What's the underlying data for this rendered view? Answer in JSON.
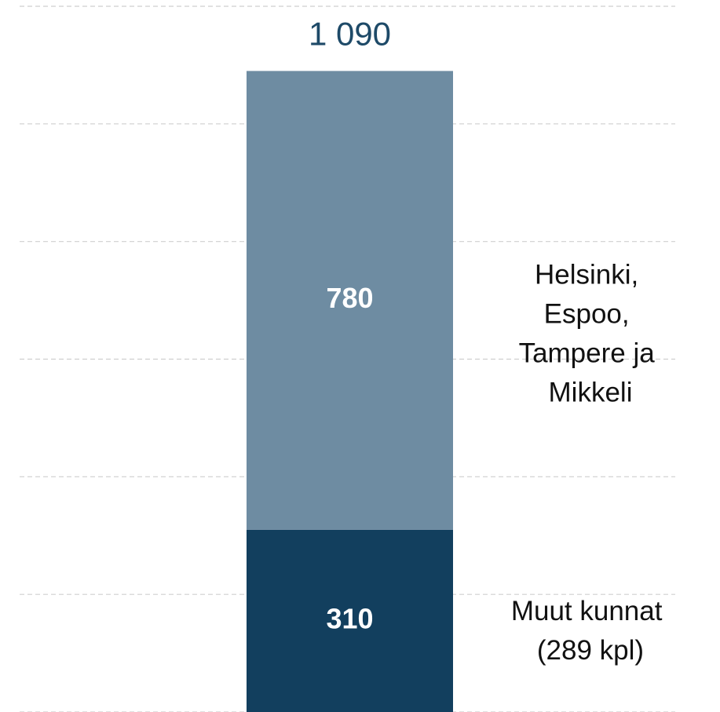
{
  "chart_data": {
    "type": "stacked_bar",
    "total_label": "1 090",
    "series": [
      {
        "name": "Muut kunnat (289 kpl)",
        "color": "#123f5e",
        "values": [
          310
        ]
      },
      {
        "name": "Helsinki, Espoo, Tampere ja Mikkeli",
        "color": "#6e8ca2",
        "values": [
          780
        ]
      }
    ],
    "ylim": [
      0,
      1200
    ],
    "yticks": [
      0,
      200,
      400,
      600,
      800,
      1000,
      1200
    ],
    "grid": true
  }
}
